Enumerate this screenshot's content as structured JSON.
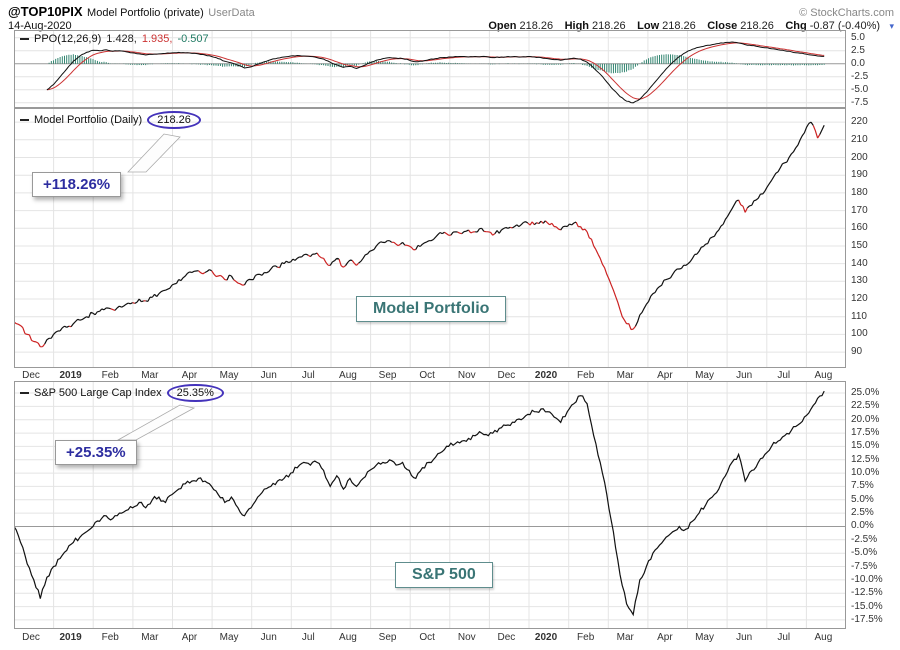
{
  "header": {
    "symbol": "@TOP10PIX",
    "title": "Model Portfolio (private)",
    "source_tag": "UserData",
    "date": "14-Aug-2020",
    "copyright": "© StockCharts.com",
    "quote": {
      "open_label": "Open",
      "open_value": "218.26",
      "high_label": "High",
      "high_value": "218.26",
      "low_label": "Low",
      "low_value": "218.26",
      "close_label": "Close",
      "close_value": "218.26",
      "chg_label": "Chg",
      "chg_value": "-0.87 (-0.40%)"
    }
  },
  "icons": {
    "dropdown": "▾"
  },
  "panels": {
    "ppo": {
      "label": "PPO(12,26,9)",
      "value_ppo": "1.428,",
      "value_signal": "1.935,",
      "value_hist": "-0.507"
    },
    "main": {
      "label": "Model Portfolio (Daily)",
      "value": "218.26",
      "callout": "+118.26%",
      "watermark": "Model Portfolio"
    },
    "sp": {
      "label": "S&P 500 Large Cap Index",
      "value": "25.35%",
      "callout": "+25.35%",
      "watermark": "S&P 500"
    }
  },
  "colors": {
    "ellipse": "#4433bb",
    "callout_text": "#2d2da0",
    "watermark_text": "#3a7575",
    "line_black": "#111111",
    "line_red": "#cc2222",
    "signal_red": "#cc3333",
    "hist_teal": "#1f7a63",
    "sp_line": "#111111",
    "grid": "#e4e4e4",
    "zero_line": "#999999",
    "panel_border": "#999999"
  },
  "chart_data": [
    {
      "type": "line",
      "name": "PPO (12,26,9)",
      "last": 1.428,
      "ylim": [
        -8.5,
        6.5
      ],
      "ytick_labels": [
        "5.0",
        "2.5",
        "0.0",
        "-2.5",
        "-5.0",
        "-7.5"
      ],
      "series": [
        {
          "name": "PPO",
          "values": [
            null,
            null,
            null,
            null,
            null,
            -5,
            -4,
            -2.5,
            -1,
            0.5,
            1.5,
            2.2,
            2.6,
            2.5,
            2.7,
            2.4,
            2.5,
            2.3,
            2.1,
            1.9,
            1.7,
            1.8,
            1.9,
            2.0,
            2.1,
            2.2,
            2.1,
            2.0,
            1.9,
            1.7,
            1.4,
            1.0,
            0.5,
            0.2,
            -0.3,
            -0.8,
            -0.6,
            -0.1,
            0.4,
            0.8,
            1.1,
            1.3,
            1.5,
            1.6,
            1.5,
            1.4,
            1.2,
            0.9,
            0.3,
            -0.2,
            -0.7,
            -0.5,
            -0.9,
            -0.4,
            0.2,
            0.7,
            1.0,
            1.2,
            1.1,
            1.0,
            0.7,
            0.4,
            0.5,
            0.8,
            1.0,
            1.2,
            1.3,
            1.4,
            1.4,
            1.3,
            1.4,
            1.4,
            1.3,
            1.2,
            1.3,
            1.4,
            1.4,
            1.3,
            1.4,
            1.3,
            1.2,
            1.0,
            0.8,
            0.7,
            0.9,
            1.1,
            0.9,
            0.3,
            -0.8,
            -2.0,
            -3.5,
            -5.0,
            -6.3,
            -7.2,
            -7.5,
            -6.8,
            -5.5,
            -4.0,
            -2.5,
            -1.0,
            0.3,
            1.4,
            2.2,
            2.8,
            3.2,
            3.5,
            3.7,
            3.9,
            4.1,
            4.2,
            4.0,
            3.7,
            3.5,
            3.3,
            3.1,
            2.9,
            2.7,
            2.5,
            2.3,
            2.1,
            1.9,
            1.7,
            1.5,
            1.428
          ]
        },
        {
          "name": "Signal (EMA 9 of PPO)",
          "derived_from": "PPO",
          "last": 1.935
        },
        {
          "name": "Histogram (PPO - Signal)",
          "derived_from": "PPO",
          "last": -0.507
        }
      ]
    },
    {
      "type": "line",
      "name": "Model Portfolio (Daily)",
      "last": 218.26,
      "ylim": [
        81,
        228
      ],
      "ytick_labels": [
        "220",
        "210",
        "200",
        "190",
        "180",
        "170",
        "160",
        "150",
        "140",
        "130",
        "120",
        "110",
        "100",
        "90"
      ],
      "x_labels": [
        "Dec",
        "2019",
        "Feb",
        "Mar",
        "Apr",
        "May",
        "Jun",
        "Jul",
        "Aug",
        "Sep",
        "Oct",
        "Nov",
        "Dec",
        "2020",
        "Feb",
        "Mar",
        "Apr",
        "May",
        "Jun",
        "Jul",
        "Aug"
      ],
      "values": [
        107,
        105,
        100,
        96,
        93,
        97,
        100,
        102,
        104,
        106,
        108,
        110,
        112,
        113,
        115,
        114,
        116,
        117,
        118,
        120,
        119,
        121,
        123,
        125,
        128,
        131,
        133,
        135,
        136,
        135,
        136,
        133,
        131,
        133,
        129,
        128,
        131,
        134,
        135,
        137,
        138,
        140,
        141,
        143,
        145,
        144,
        146,
        143,
        139,
        143,
        138,
        142,
        139,
        143,
        147,
        150,
        152,
        153,
        151,
        152,
        150,
        148,
        151,
        153,
        155,
        157,
        156,
        158,
        157,
        159,
        158,
        160,
        158,
        157,
        159,
        160,
        161,
        162,
        163,
        162,
        164,
        163,
        161,
        159,
        161,
        163,
        161,
        158,
        150,
        143,
        134,
        125,
        114,
        106,
        103,
        111,
        117,
        123,
        127,
        131,
        134,
        137,
        139,
        143,
        147,
        151,
        155,
        159,
        165,
        171,
        176,
        169,
        173,
        177,
        181,
        187,
        192,
        197,
        202,
        207,
        214,
        220,
        211,
        218.26
      ]
    },
    {
      "type": "line",
      "name": "S&P 500 Large Cap Index (% change)",
      "last": 25.35,
      "ylim": [
        -19.2,
        27.25
      ],
      "ytick_labels": [
        "25.0%",
        "22.5%",
        "20.0%",
        "17.5%",
        "15.0%",
        "12.5%",
        "10.0%",
        "7.5%",
        "5.0%",
        "2.5%",
        "0.0%",
        "-2.5%",
        "-5.0%",
        "-7.5%",
        "-10.0%",
        "-12.5%",
        "-15.0%",
        "-17.5%"
      ],
      "x_labels": [
        "Dec",
        "2019",
        "Feb",
        "Mar",
        "Apr",
        "May",
        "Jun",
        "Jul",
        "Aug",
        "Sep",
        "Oct",
        "Nov",
        "Dec",
        "2020",
        "Feb",
        "Mar",
        "Apr",
        "May",
        "Jun",
        "Jul",
        "Aug"
      ],
      "values": [
        0,
        -3,
        -7,
        -10,
        -13.5,
        -9.5,
        -7.5,
        -6,
        -4.5,
        -3,
        -2,
        -1,
        0,
        1,
        2,
        1.5,
        2.5,
        3,
        3.5,
        4.5,
        3.5,
        5,
        5.5,
        4.5,
        6,
        7,
        8,
        8.5,
        9,
        8.5,
        7.5,
        6,
        4.5,
        5.5,
        3.5,
        2,
        3.5,
        5.5,
        7,
        7.5,
        8.5,
        9,
        10,
        11,
        12,
        11.5,
        12,
        10.5,
        7.5,
        9.5,
        7,
        9,
        7.5,
        9,
        10.5,
        11.5,
        12,
        12.5,
        11.5,
        12,
        10.5,
        9,
        11,
        12,
        13,
        14,
        15,
        15.5,
        16,
        16.5,
        17,
        17.5,
        17,
        18,
        18.5,
        19,
        19.5,
        20,
        21,
        21.5,
        22,
        21.5,
        20.5,
        19.5,
        21.5,
        23,
        24.5,
        23,
        17,
        12,
        6,
        -1,
        -9,
        -14.5,
        -16.5,
        -10,
        -7.5,
        -5,
        -3.5,
        -2,
        -1,
        0,
        -0.5,
        1,
        2.5,
        4,
        5.5,
        7,
        9.5,
        12,
        13.5,
        8.5,
        10.5,
        12,
        13.5,
        15,
        16,
        17,
        18,
        19,
        20.5,
        22,
        24,
        25.35
      ]
    }
  ]
}
